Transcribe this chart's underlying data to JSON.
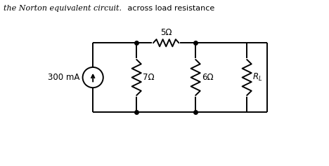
{
  "title_italic": "the Norton equivalent circuit.",
  "title_normal": " across load resistance",
  "bg_color": "#ffffff",
  "line_color": "#000000",
  "text_color": "#000000",
  "current_source_label": "300 mA",
  "r1_label": "5Ω",
  "r2_label": "7Ω",
  "r3_label": "6Ω",
  "r4_label": "$R_L$",
  "lw": 1.4,
  "dot_size": 4
}
